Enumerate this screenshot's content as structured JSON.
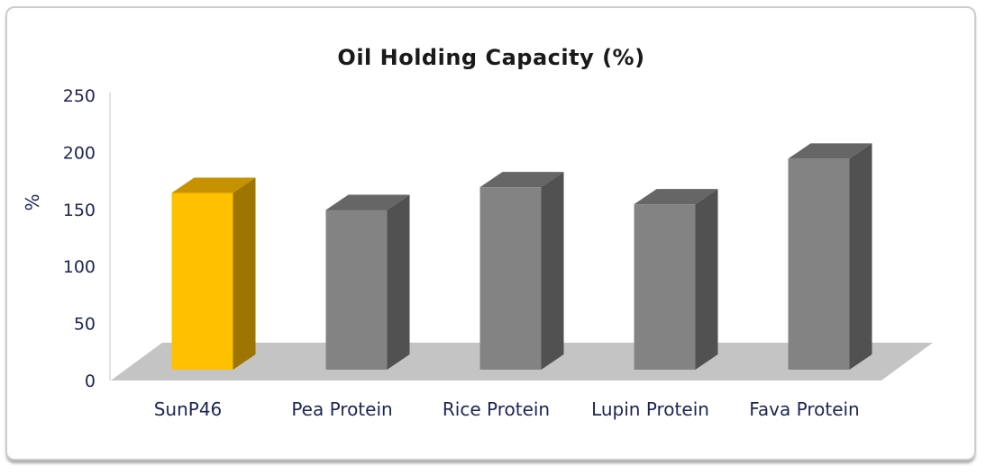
{
  "chart_data": {
    "type": "bar",
    "style": "3d",
    "title": "Oil Holding Capacity (%)",
    "ylabel": "%",
    "categories": [
      "SunP46",
      "Pea Protein",
      "Rice Protein",
      "Lupin Protein",
      "Fava Protein"
    ],
    "values": [
      155,
      140,
      160,
      145,
      185
    ],
    "ylim": [
      0,
      250
    ],
    "yticks": [
      0,
      50,
      100,
      150,
      200,
      250
    ],
    "grid": false,
    "legend": false,
    "highlight_category": "SunP46",
    "colors": {
      "highlight_front": "#FFC000",
      "highlight_top": "#C69200",
      "highlight_side": "#9E7500",
      "default_front": "#838383",
      "default_top": "#666666",
      "default_side": "#515151",
      "floor": "#C4C4C4",
      "axis_line": "#D9D9D9",
      "label": "#1D2554",
      "title": "#1A1A1A"
    }
  }
}
